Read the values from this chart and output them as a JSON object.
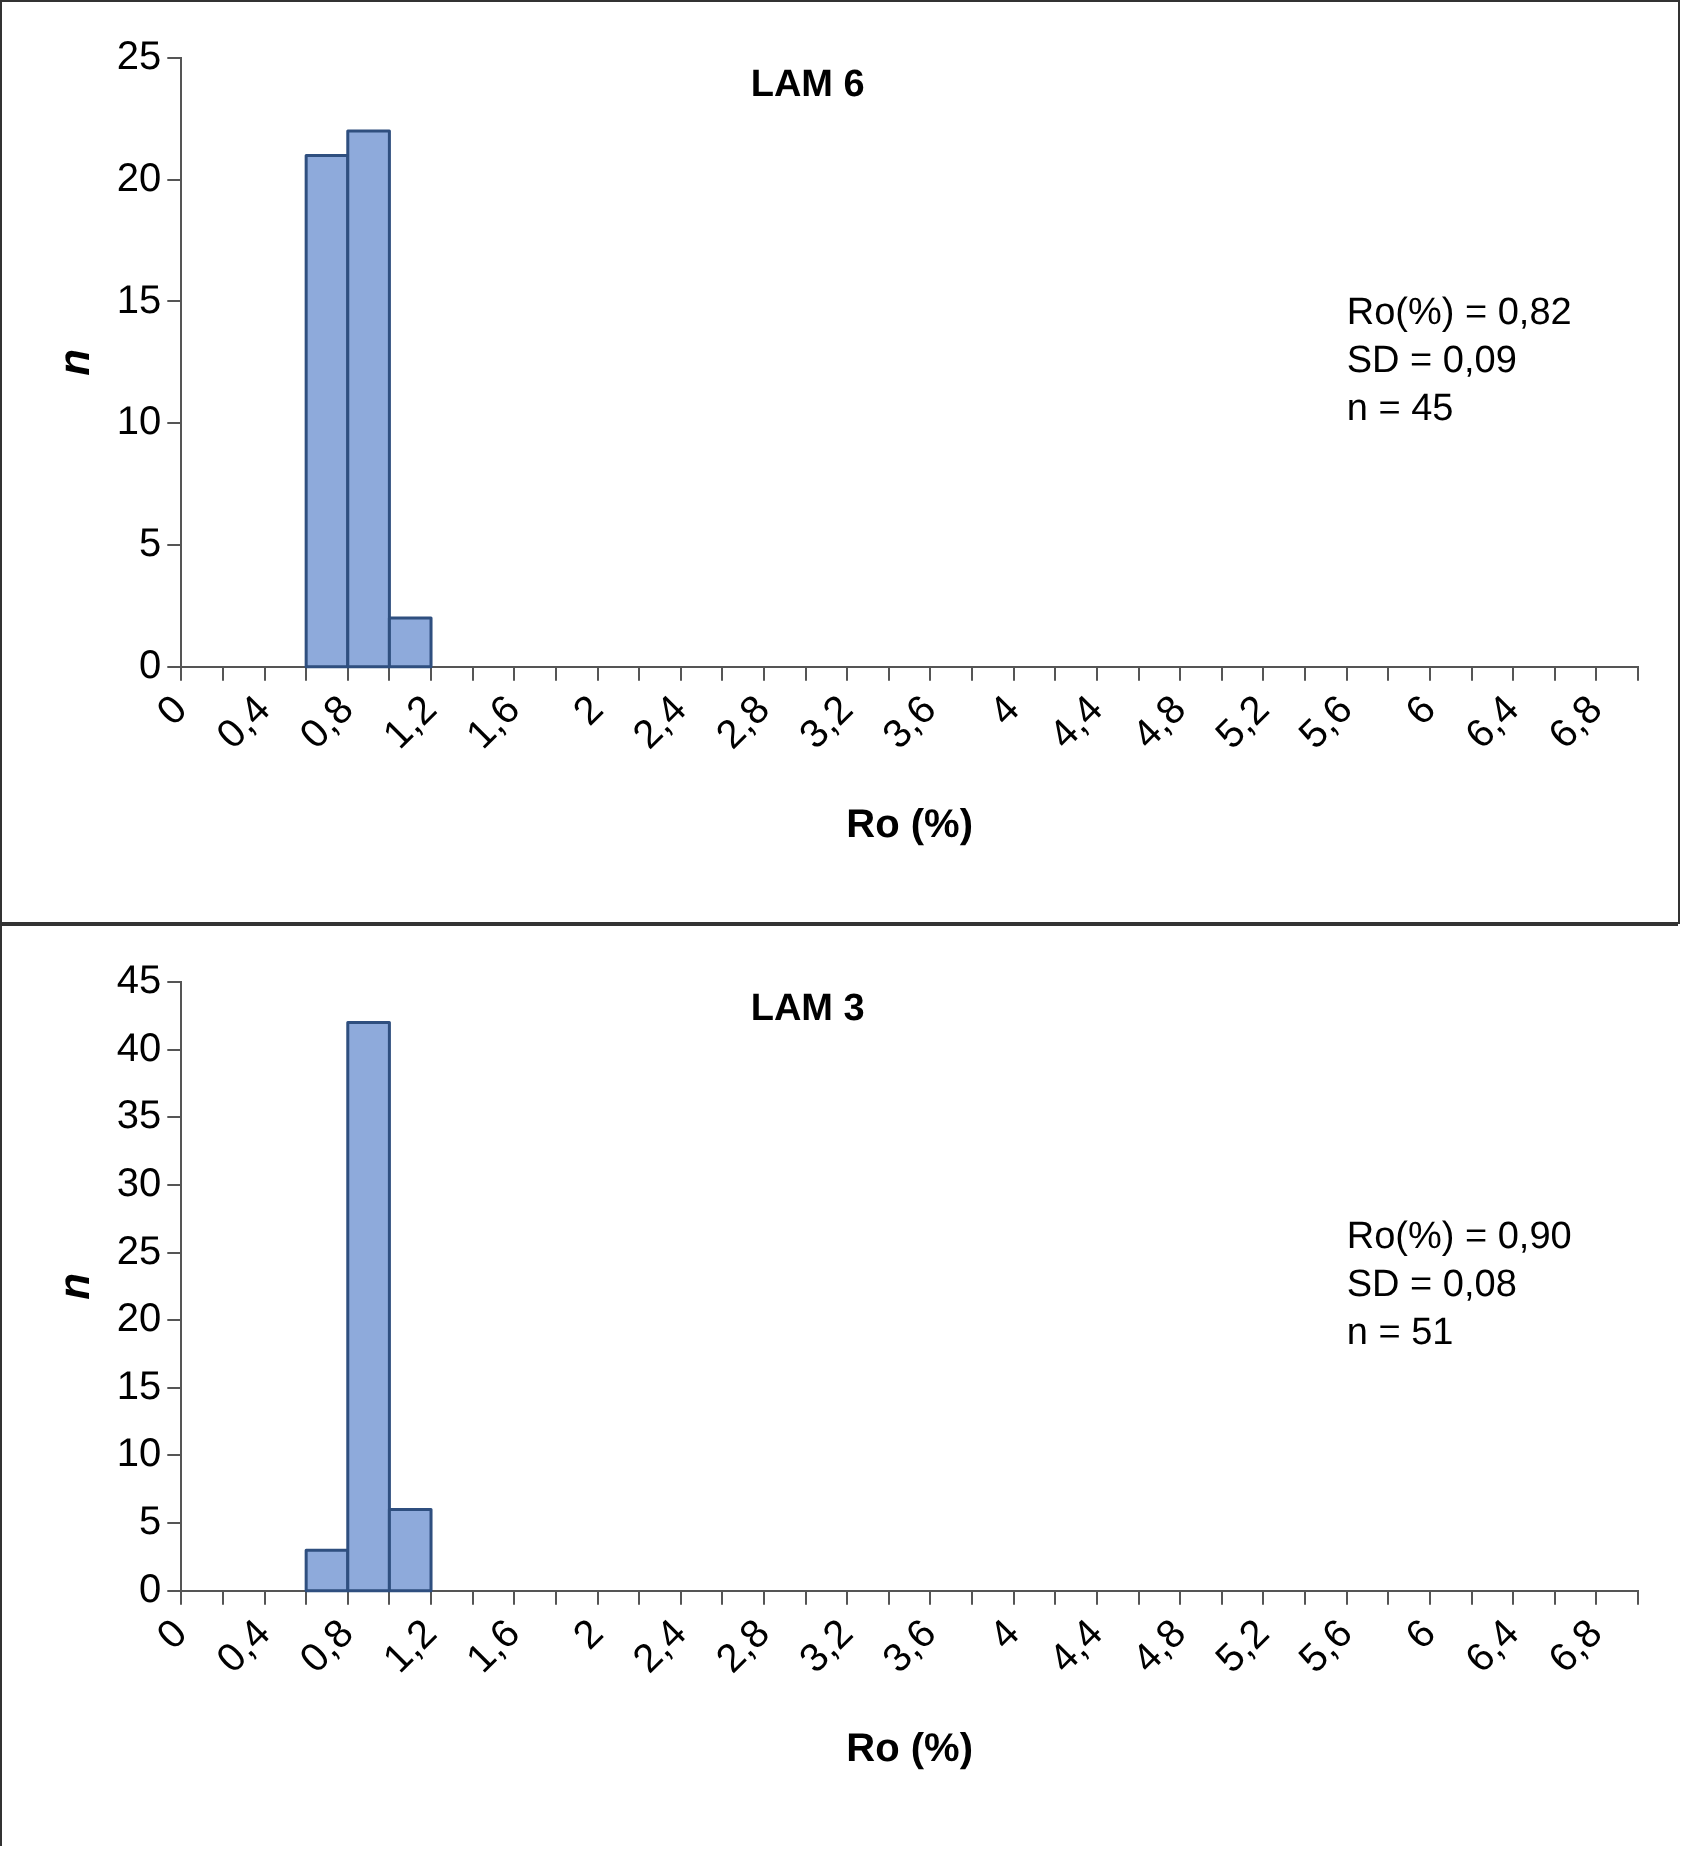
{
  "chart_data": [
    {
      "type": "histogram",
      "title": "LAM 6",
      "xlabel": "Ro (%)",
      "ylabel": "n",
      "bins": [
        0.6,
        0.8,
        1.0,
        1.2
      ],
      "values": [
        21,
        22,
        2
      ],
      "color": "#8eaadb",
      "xlim": [
        0,
        7
      ],
      "xticks": [
        0,
        {
          "value": 0.2,
          "label": null
        },
        {
          "value": 0.4,
          "label": "0,4"
        },
        {
          "value": 0.6,
          "label": null
        },
        {
          "value": 0.8,
          "label": "0,8"
        },
        {
          "value": 1.0,
          "label": null
        },
        {
          "value": 1.2,
          "label": "1,2"
        },
        {
          "value": 1.4,
          "label": null
        },
        {
          "value": 1.6,
          "label": "1,6"
        },
        {
          "value": 1.8,
          "label": null
        },
        2,
        {
          "value": 2.2,
          "label": null
        },
        {
          "value": 2.4,
          "label": "2,4"
        },
        {
          "value": 2.6,
          "label": null
        },
        {
          "value": 2.8,
          "label": "2,8"
        },
        {
          "value": 3.0,
          "label": null
        },
        {
          "value": 3.2,
          "label": "3,2"
        },
        {
          "value": 3.4,
          "label": null
        },
        {
          "value": 3.6,
          "label": "3,6"
        },
        {
          "value": 3.8,
          "label": null
        },
        4,
        {
          "value": 4.2,
          "label": null
        },
        {
          "value": 4.4,
          "label": "4,4"
        },
        {
          "value": 4.6,
          "label": null
        },
        {
          "value": 4.8,
          "label": "4,8"
        },
        {
          "value": 5.0,
          "label": null
        },
        {
          "value": 5.2,
          "label": "5,2"
        },
        {
          "value": 5.4,
          "label": null
        },
        {
          "value": 5.6,
          "label": "5,6"
        },
        {
          "value": 5.8,
          "label": null
        },
        6,
        {
          "value": 6.2,
          "label": null
        },
        {
          "value": 6.4,
          "label": "6,4"
        },
        {
          "value": 6.6,
          "label": null
        },
        {
          "value": 6.8,
          "label": "6,8"
        },
        {
          "value": 7.0,
          "label": null
        }
      ],
      "ylim": [
        0,
        25
      ],
      "yticks": [
        0,
        5,
        10,
        15,
        20,
        25
      ],
      "annotations": [
        "Ro(%) = 0,82",
        "SD = 0,09",
        "n = 45"
      ]
    },
    {
      "type": "histogram",
      "title": "LAM 3",
      "xlabel": "Ro (%)",
      "ylabel": "n",
      "bins": [
        0.6,
        0.8,
        1.0,
        1.2
      ],
      "values": [
        3,
        42,
        6
      ],
      "color": "#8eaadb",
      "xlim": [
        0,
        7
      ],
      "xticks": [
        0,
        {
          "value": 0.2,
          "label": null
        },
        {
          "value": 0.4,
          "label": "0,4"
        },
        {
          "value": 0.6,
          "label": null
        },
        {
          "value": 0.8,
          "label": "0,8"
        },
        {
          "value": 1.0,
          "label": null
        },
        {
          "value": 1.2,
          "label": "1,2"
        },
        {
          "value": 1.4,
          "label": null
        },
        {
          "value": 1.6,
          "label": "1,6"
        },
        {
          "value": 1.8,
          "label": null
        },
        2,
        {
          "value": 2.2,
          "label": null
        },
        {
          "value": 2.4,
          "label": "2,4"
        },
        {
          "value": 2.6,
          "label": null
        },
        {
          "value": 2.8,
          "label": "2,8"
        },
        {
          "value": 3.0,
          "label": null
        },
        {
          "value": 3.2,
          "label": "3,2"
        },
        {
          "value": 3.4,
          "label": null
        },
        {
          "value": 3.6,
          "label": "3,6"
        },
        {
          "value": 3.8,
          "label": null
        },
        4,
        {
          "value": 4.2,
          "label": null
        },
        {
          "value": 4.4,
          "label": "4,4"
        },
        {
          "value": 4.6,
          "label": null
        },
        {
          "value": 4.8,
          "label": "4,8"
        },
        {
          "value": 5.0,
          "label": null
        },
        {
          "value": 5.2,
          "label": "5,2"
        },
        {
          "value": 5.4,
          "label": null
        },
        {
          "value": 5.6,
          "label": "5,6"
        },
        {
          "value": 5.8,
          "label": null
        },
        6,
        {
          "value": 6.2,
          "label": null
        },
        {
          "value": 6.4,
          "label": "6,4"
        },
        {
          "value": 6.6,
          "label": null
        },
        {
          "value": 6.8,
          "label": "6,8"
        },
        {
          "value": 7.0,
          "label": null
        }
      ],
      "ylim": [
        0,
        45
      ],
      "yticks": [
        0,
        5,
        10,
        15,
        20,
        25,
        30,
        35,
        40,
        45
      ],
      "annotations": [
        "Ro(%) = 0,90",
        "SD = 0,08",
        "n = 51"
      ]
    }
  ]
}
